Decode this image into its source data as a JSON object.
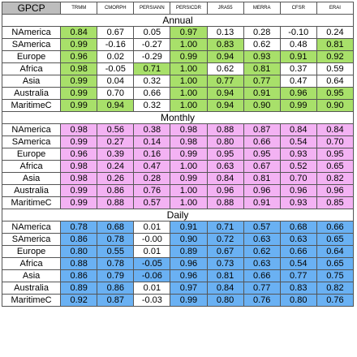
{
  "table": {
    "corner_label": "GPCP",
    "columns": [
      "TRMM",
      "CMORPH",
      "PERSIANN",
      "PERSICDR",
      "JRA55",
      "MERRA",
      "CFSR",
      "ERAI"
    ],
    "highlight_colors": {
      "green": "#a8e06a",
      "pink": "#f3b2f3",
      "blue": "#6ab1f3"
    },
    "sections": [
      {
        "title": "Annual",
        "color": "green",
        "rows": [
          {
            "region": "NAmerica",
            "values": [
              "0.84",
              "0.67",
              "0.05",
              "0.97",
              "0.13",
              "0.28",
              "-0.10",
              "0.24"
            ],
            "highlight": [
              true,
              false,
              false,
              true,
              false,
              false,
              false,
              false
            ]
          },
          {
            "region": "SAmerica",
            "values": [
              "0.99",
              "-0.16",
              "-0.27",
              "1.00",
              "0.83",
              "0.62",
              "0.48",
              "0.81"
            ],
            "highlight": [
              true,
              false,
              false,
              true,
              true,
              false,
              false,
              true
            ]
          },
          {
            "region": "Europe",
            "values": [
              "0.96",
              "0.02",
              "-0.29",
              "0.99",
              "0.94",
              "0.93",
              "0.91",
              "0.92"
            ],
            "highlight": [
              true,
              false,
              false,
              true,
              true,
              true,
              true,
              true
            ]
          },
          {
            "region": "Africa",
            "values": [
              "0.98",
              "-0.05",
              "0.71",
              "1.00",
              "0.62",
              "0.81",
              "0.37",
              "0.59"
            ],
            "highlight": [
              true,
              false,
              true,
              true,
              false,
              true,
              false,
              false
            ]
          },
          {
            "region": "Asia",
            "values": [
              "0.99",
              "0.04",
              "0.32",
              "1.00",
              "0.77",
              "0.77",
              "0.47",
              "0.64"
            ],
            "highlight": [
              true,
              false,
              false,
              true,
              true,
              true,
              false,
              false
            ]
          },
          {
            "region": "Australia",
            "values": [
              "0.99",
              "0.70",
              "0.66",
              "1.00",
              "0.94",
              "0.91",
              "0.96",
              "0.95"
            ],
            "highlight": [
              true,
              false,
              false,
              true,
              true,
              true,
              true,
              true
            ]
          },
          {
            "region": "MaritimeC",
            "values": [
              "0.99",
              "0.94",
              "0.32",
              "1.00",
              "0.94",
              "0.90",
              "0.99",
              "0.90"
            ],
            "highlight": [
              true,
              true,
              false,
              true,
              true,
              true,
              true,
              true
            ]
          }
        ]
      },
      {
        "title": "Monthly",
        "color": "pink",
        "rows": [
          {
            "region": "NAmerica",
            "values": [
              "0.98",
              "0.56",
              "0.38",
              "0.98",
              "0.88",
              "0.87",
              "0.84",
              "0.84"
            ],
            "highlight": [
              true,
              true,
              true,
              true,
              true,
              true,
              true,
              true
            ]
          },
          {
            "region": "SAmerica",
            "values": [
              "0.99",
              "0.27",
              "0.14",
              "0.98",
              "0.80",
              "0.66",
              "0.54",
              "0.70"
            ],
            "highlight": [
              true,
              true,
              true,
              true,
              true,
              true,
              true,
              true
            ]
          },
          {
            "region": "Europe",
            "values": [
              "0.96",
              "0.39",
              "0.16",
              "0.99",
              "0.95",
              "0.95",
              "0.93",
              "0.95"
            ],
            "highlight": [
              true,
              true,
              true,
              true,
              true,
              true,
              true,
              true
            ]
          },
          {
            "region": "Africa",
            "values": [
              "0.98",
              "0.24",
              "0.47",
              "1.00",
              "0.63",
              "0.67",
              "0.52",
              "0.65"
            ],
            "highlight": [
              true,
              true,
              true,
              true,
              true,
              true,
              true,
              true
            ]
          },
          {
            "region": "Asia",
            "values": [
              "0.98",
              "0.26",
              "0.28",
              "0.99",
              "0.84",
              "0.81",
              "0.70",
              "0.82"
            ],
            "highlight": [
              true,
              true,
              true,
              true,
              true,
              true,
              true,
              true
            ]
          },
          {
            "region": "Australia",
            "values": [
              "0.99",
              "0.86",
              "0.76",
              "1.00",
              "0.96",
              "0.96",
              "0.96",
              "0.96"
            ],
            "highlight": [
              true,
              true,
              true,
              true,
              true,
              true,
              true,
              true
            ]
          },
          {
            "region": "MaritimeC",
            "values": [
              "0.99",
              "0.88",
              "0.57",
              "1.00",
              "0.88",
              "0.91",
              "0.93",
              "0.85"
            ],
            "highlight": [
              true,
              true,
              true,
              true,
              true,
              true,
              true,
              true
            ]
          }
        ]
      },
      {
        "title": "Daily",
        "color": "blue",
        "rows": [
          {
            "region": "NAmerica",
            "values": [
              "0.78",
              "0.68",
              "0.01",
              "0.91",
              "0.71",
              "0.57",
              "0.68",
              "0.66"
            ],
            "highlight": [
              true,
              true,
              false,
              true,
              true,
              true,
              true,
              true
            ]
          },
          {
            "region": "SAmerica",
            "values": [
              "0.86",
              "0.78",
              "-0.00",
              "0.90",
              "0.72",
              "0.63",
              "0.63",
              "0.65"
            ],
            "highlight": [
              true,
              true,
              false,
              true,
              true,
              true,
              true,
              true
            ]
          },
          {
            "region": "Europe",
            "values": [
              "0.80",
              "0.55",
              "0.01",
              "0.89",
              "0.67",
              "0.62",
              "0.66",
              "0.64"
            ],
            "highlight": [
              true,
              true,
              false,
              true,
              true,
              true,
              true,
              true
            ]
          },
          {
            "region": "Africa",
            "values": [
              "0.88",
              "0.78",
              "-0.05",
              "0.96",
              "0.73",
              "0.63",
              "0.54",
              "0.65"
            ],
            "highlight": [
              true,
              true,
              true,
              true,
              true,
              true,
              true,
              true
            ]
          },
          {
            "region": "Asia",
            "values": [
              "0.86",
              "0.79",
              "-0.06",
              "0.96",
              "0.81",
              "0.66",
              "0.77",
              "0.75"
            ],
            "highlight": [
              true,
              true,
              true,
              true,
              true,
              true,
              true,
              true
            ]
          },
          {
            "region": "Australia",
            "values": [
              "0.89",
              "0.86",
              "0.01",
              "0.97",
              "0.84",
              "0.77",
              "0.83",
              "0.82"
            ],
            "highlight": [
              true,
              true,
              false,
              true,
              true,
              true,
              true,
              true
            ]
          },
          {
            "region": "MaritimeC",
            "values": [
              "0.92",
              "0.87",
              "-0.03",
              "0.99",
              "0.80",
              "0.76",
              "0.80",
              "0.76"
            ],
            "highlight": [
              true,
              true,
              false,
              true,
              true,
              true,
              true,
              true
            ]
          }
        ]
      }
    ]
  }
}
